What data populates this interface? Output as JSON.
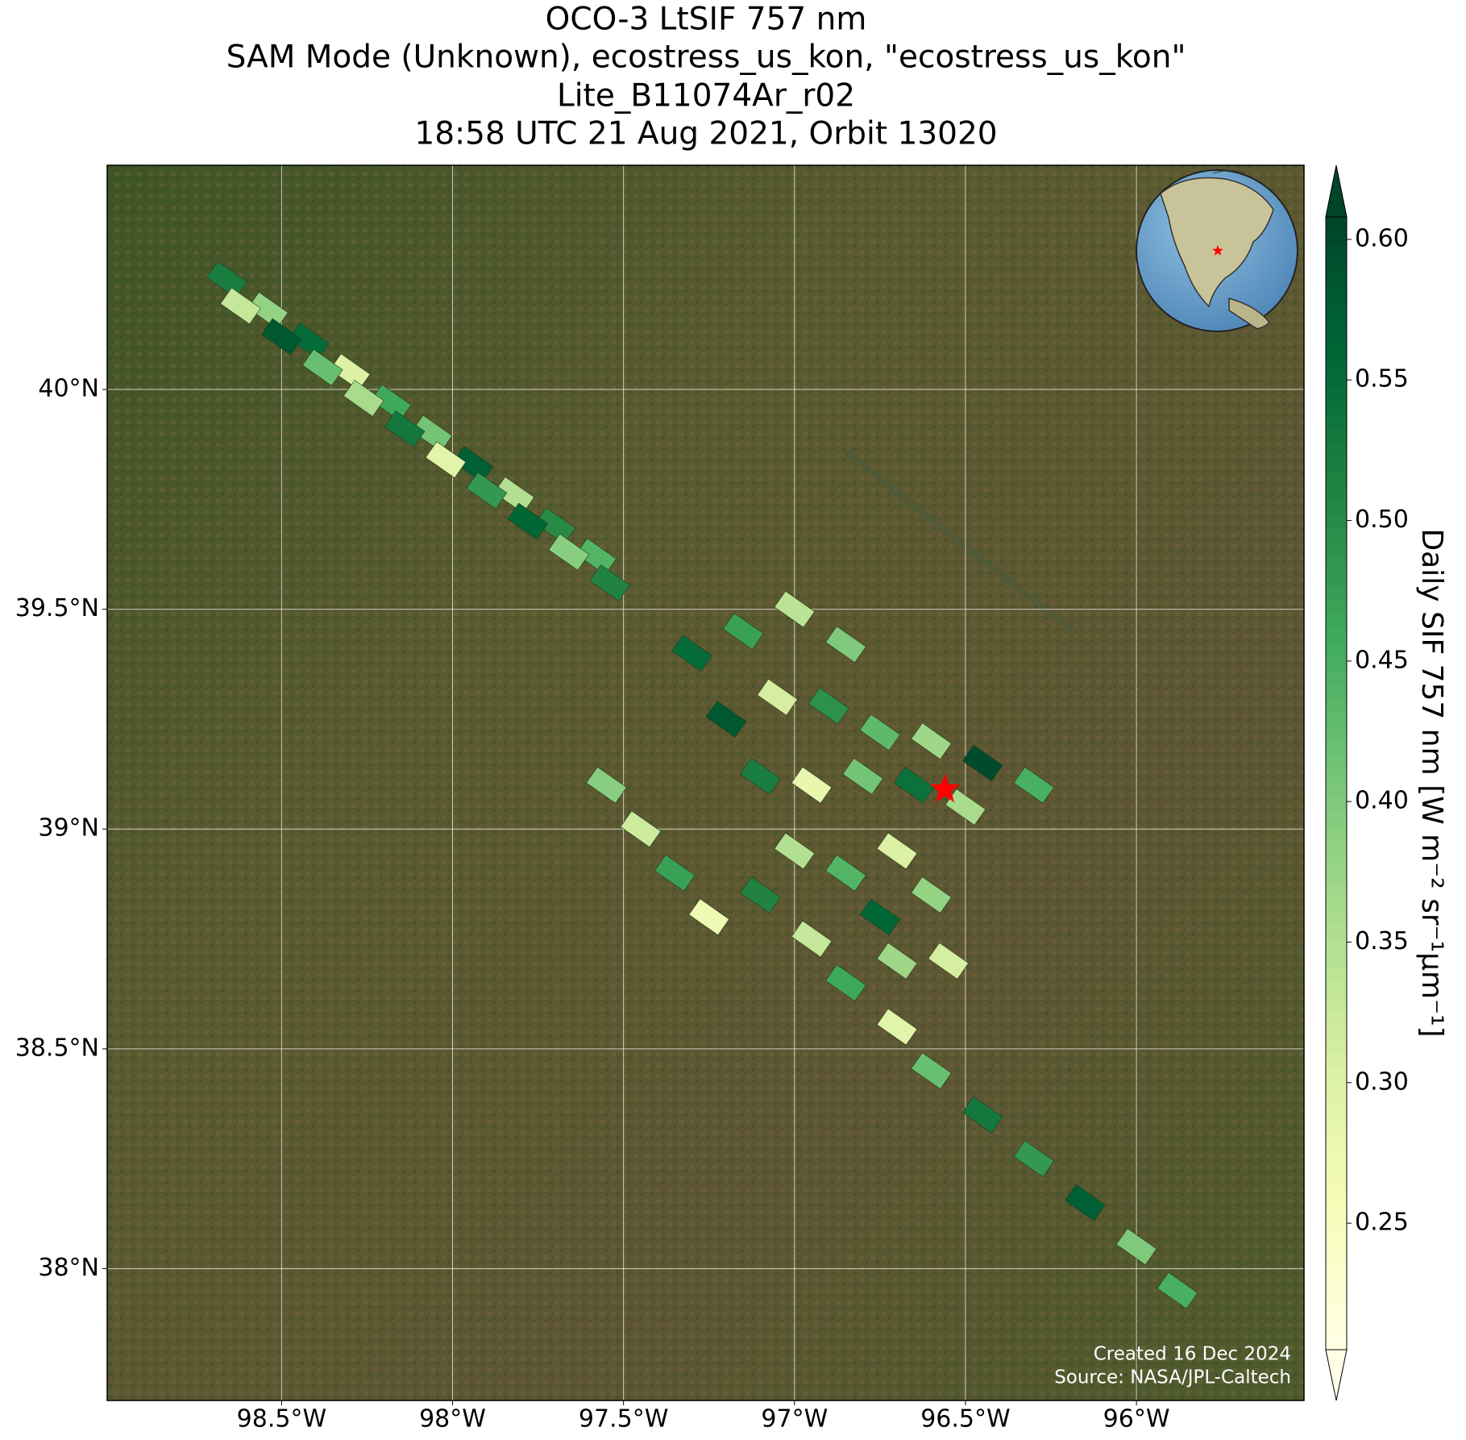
{
  "chart_data": {
    "type": "map-swath",
    "title": [
      "OCO-3 LtSIF 757 nm",
      "SAM Mode (Unknown), ecostress_us_kon, \"ecostress_us_kon\"",
      "Lite_B11074Ar_r02",
      "18:58 UTC 21 Aug 2021, Orbit 13020"
    ],
    "colorbar_label": "Daily SIF 757 nm [W m⁻² sr⁻¹μm⁻¹]",
    "credits": [
      "Created 16 Dec 2024",
      "Source: NASA/JPL-Caltech"
    ],
    "xlim": [
      -99.01,
      -95.51
    ],
    "ylim": [
      37.7,
      40.51
    ],
    "xticks": [
      {
        "value": -98.5,
        "label": "98.5°W"
      },
      {
        "value": -98,
        "label": "98°W"
      },
      {
        "value": -97.5,
        "label": "97.5°W"
      },
      {
        "value": -97,
        "label": "97°W"
      },
      {
        "value": -96.5,
        "label": "96.5°W"
      },
      {
        "value": -96,
        "label": "96°W"
      }
    ],
    "yticks": [
      {
        "value": 38,
        "label": "38°N"
      },
      {
        "value": 38.5,
        "label": "38.5°N"
      },
      {
        "value": 39,
        "label": "39°N"
      },
      {
        "value": 39.5,
        "label": "39.5°N"
      },
      {
        "value": 40,
        "label": "40°N"
      }
    ],
    "clim": [
      0.205,
      0.608
    ],
    "cticks": [
      0.25,
      {
        "value": 0.3,
        "label": "0.30"
      },
      0.35,
      {
        "value": 0.4,
        "label": "0.40"
      },
      0.45,
      {
        "value": 0.5,
        "label": "0.50"
      },
      0.55,
      {
        "value": 0.6,
        "label": "0.60"
      }
    ],
    "colormap": [
      "#ffffe5",
      "#f7fcb9",
      "#d9f0a3",
      "#addd8e",
      "#78c679",
      "#41ab5d",
      "#238443",
      "#006837",
      "#004529"
    ],
    "grid": true,
    "site_marker": {
      "x": -96.56,
      "y": 39.09,
      "color": "#ff0000"
    },
    "x": [
      -98.66,
      -98.54,
      -98.42,
      -98.3,
      -98.18,
      -98.06,
      -97.94,
      -97.82,
      -97.7,
      -97.58,
      -98.62,
      -98.5,
      -98.38,
      -98.26,
      -98.14,
      -98.02,
      -97.9,
      -97.78,
      -97.66,
      -97.54,
      -97.3,
      -97.15,
      -97.0,
      -96.85,
      -97.2,
      -97.05,
      -96.9,
      -96.75,
      -96.6,
      -96.45,
      -96.3,
      -97.1,
      -96.95,
      -96.8,
      -96.65,
      -96.5,
      -97.55,
      -97.45,
      -97.35,
      -97.25,
      -97.1,
      -97.0,
      -96.85,
      -96.7,
      -96.6,
      -96.75,
      -96.95,
      -96.85,
      -96.7,
      -96.6,
      -96.45,
      -96.3,
      -96.15,
      -96.0,
      -95.88,
      -96.55,
      -96.7
    ],
    "y": [
      40.25,
      40.18,
      40.11,
      40.04,
      39.97,
      39.9,
      39.83,
      39.76,
      39.69,
      39.62,
      40.19,
      40.12,
      40.05,
      39.98,
      39.91,
      39.84,
      39.77,
      39.7,
      39.63,
      39.56,
      39.4,
      39.45,
      39.5,
      39.42,
      39.25,
      39.3,
      39.28,
      39.22,
      39.2,
      39.15,
      39.1,
      39.12,
      39.1,
      39.12,
      39.1,
      39.05,
      39.1,
      39.0,
      38.9,
      38.8,
      38.85,
      38.95,
      38.9,
      38.95,
      38.85,
      38.8,
      38.75,
      38.65,
      38.55,
      38.45,
      38.35,
      38.25,
      38.15,
      38.05,
      37.95,
      38.7,
      38.7
    ],
    "values": [
      0.52,
      0.38,
      0.55,
      0.3,
      0.46,
      0.41,
      0.57,
      0.35,
      0.5,
      0.44,
      0.33,
      0.58,
      0.42,
      0.36,
      0.53,
      0.29,
      0.48,
      0.56,
      0.39,
      0.51,
      0.55,
      0.47,
      0.34,
      0.4,
      0.58,
      0.31,
      0.49,
      0.43,
      0.37,
      0.6,
      0.45,
      0.52,
      0.28,
      0.41,
      0.54,
      0.36,
      0.39,
      0.32,
      0.47,
      0.27,
      0.51,
      0.35,
      0.44,
      0.3,
      0.38,
      0.56,
      0.33,
      0.46,
      0.29,
      0.42,
      0.53,
      0.48,
      0.57,
      0.4,
      0.45,
      0.31,
      0.37
    ]
  }
}
